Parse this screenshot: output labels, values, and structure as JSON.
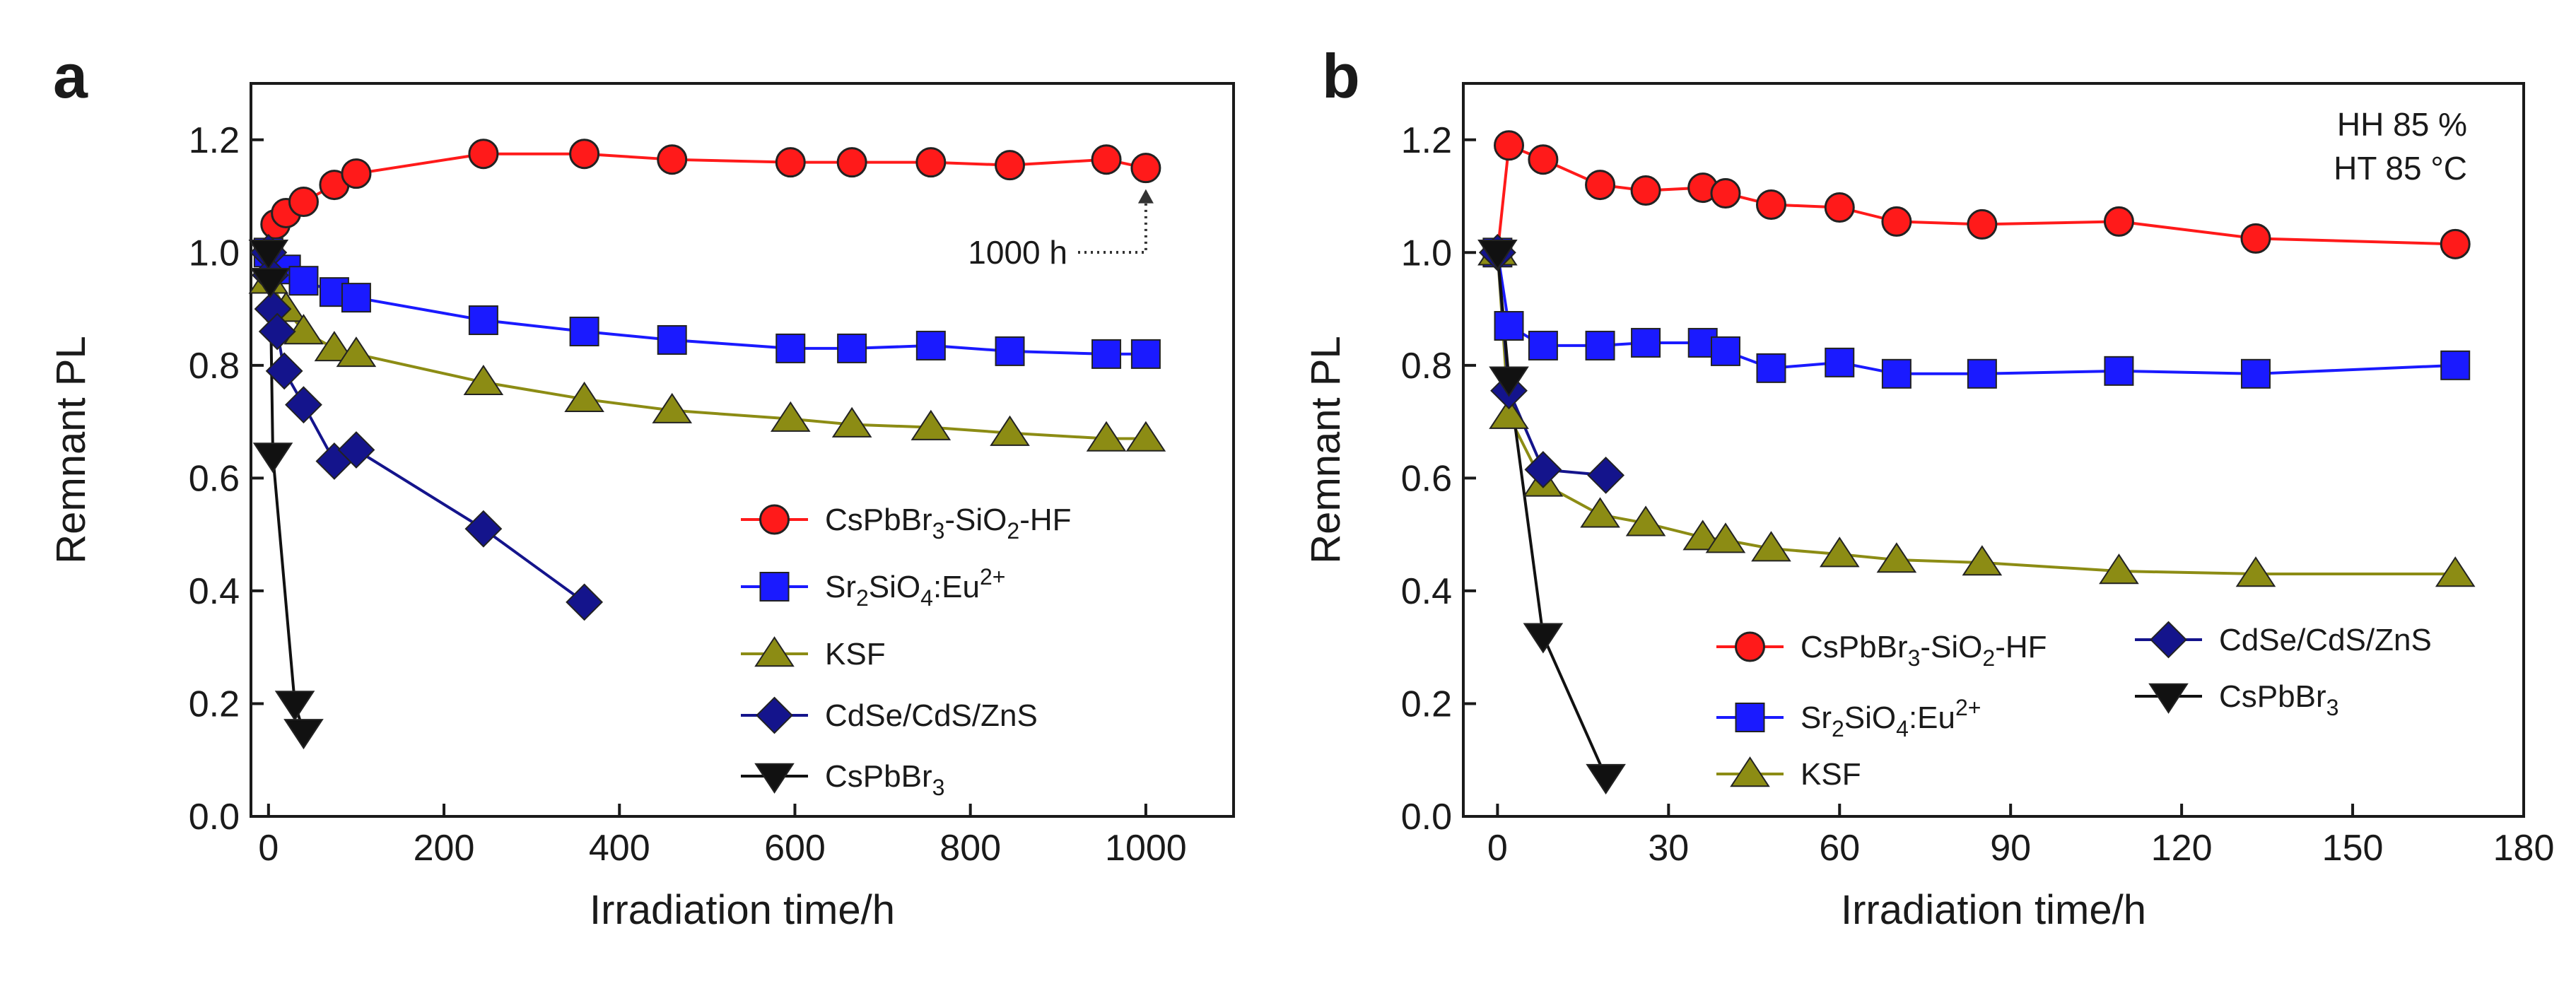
{
  "chart_data": [
    {
      "panel": "a",
      "type": "line",
      "xlabel": "Irradiation time/h",
      "ylabel": "Remnant PL",
      "xlim": [
        -20,
        1100
      ],
      "ylim": [
        0.0,
        1.3
      ],
      "xticks": [
        0,
        200,
        400,
        600,
        800,
        1000
      ],
      "yticks": [
        0.0,
        0.2,
        0.4,
        0.6,
        0.8,
        1.0,
        1.2
      ],
      "xtick_labels": [
        "0",
        "200",
        "400",
        "600",
        "800",
        "1000"
      ],
      "ytick_labels": [
        "0.0",
        "0.2",
        "0.4",
        "0.6",
        "0.8",
        "1.0",
        "1.2"
      ],
      "legend_position": "bottom-right",
      "annotations": [
        {
          "text": "1000 h",
          "points_to": [
            1000,
            1.15
          ]
        }
      ],
      "series": [
        {
          "name": "CsPbBr3-SiO2-HF",
          "legend_parts": [
            [
              "CsPbBr",
              ""
            ],
            [
              "3",
              "sub"
            ],
            [
              "-SiO",
              ""
            ],
            [
              "2",
              "sub"
            ],
            [
              "-HF",
              ""
            ]
          ],
          "color": "#ff1a1a",
          "marker": "circle",
          "x": [
            0,
            8,
            20,
            40,
            75,
            100,
            245,
            360,
            460,
            595,
            665,
            755,
            845,
            955,
            1000
          ],
          "y": [
            1.0,
            1.05,
            1.07,
            1.09,
            1.12,
            1.14,
            1.175,
            1.175,
            1.165,
            1.16,
            1.16,
            1.16,
            1.155,
            1.165,
            1.15
          ]
        },
        {
          "name": "Sr2SiO4:Eu2+",
          "legend_parts": [
            [
              "Sr",
              ""
            ],
            [
              "2",
              "sub"
            ],
            [
              "SiO",
              ""
            ],
            [
              "4",
              "sub"
            ],
            [
              ":Eu",
              ""
            ],
            [
              "2+",
              "sup"
            ]
          ],
          "color": "#1a1aff",
          "marker": "square",
          "x": [
            0,
            20,
            40,
            75,
            100,
            245,
            360,
            460,
            595,
            665,
            755,
            845,
            955,
            1000
          ],
          "y": [
            1.0,
            0.97,
            0.95,
            0.93,
            0.92,
            0.88,
            0.86,
            0.845,
            0.83,
            0.83,
            0.835,
            0.825,
            0.82,
            0.82
          ]
        },
        {
          "name": "KSF",
          "legend_parts": [
            [
              "KSF",
              ""
            ]
          ],
          "color": "#8c8c14",
          "marker": "triangle-up",
          "x": [
            0,
            20,
            40,
            75,
            100,
            245,
            360,
            460,
            595,
            665,
            755,
            845,
            955,
            1000
          ],
          "y": [
            0.95,
            0.9,
            0.86,
            0.83,
            0.82,
            0.77,
            0.74,
            0.72,
            0.705,
            0.695,
            0.69,
            0.68,
            0.67,
            0.67
          ]
        },
        {
          "name": "CdSe/CdS/ZnS",
          "legend_parts": [
            [
              "CdSe/CdS/ZnS",
              ""
            ]
          ],
          "color": "#14148c",
          "marker": "diamond",
          "x": [
            0,
            2,
            5,
            10,
            18,
            40,
            75,
            100,
            245,
            360
          ],
          "y": [
            1.0,
            0.96,
            0.9,
            0.86,
            0.79,
            0.73,
            0.63,
            0.65,
            0.51,
            0.38
          ]
        },
        {
          "name": "CsPbBr3",
          "legend_parts": [
            [
              "CsPbBr",
              ""
            ],
            [
              "3",
              "sub"
            ]
          ],
          "color": "#111111",
          "marker": "triangle-down",
          "x": [
            0,
            2,
            5,
            30,
            40
          ],
          "y": [
            1.0,
            0.95,
            0.64,
            0.2,
            0.15
          ]
        }
      ]
    },
    {
      "panel": "b",
      "type": "line",
      "xlabel": "Irradiation time/h",
      "ylabel": "Remnant PL",
      "xlim": [
        -6,
        180
      ],
      "ylim": [
        0.0,
        1.3
      ],
      "xticks": [
        0,
        30,
        60,
        90,
        120,
        150,
        180
      ],
      "yticks": [
        0.0,
        0.2,
        0.4,
        0.6,
        0.8,
        1.0,
        1.2
      ],
      "xtick_labels": [
        "0",
        "30",
        "60",
        "90",
        "120",
        "150",
        "180"
      ],
      "ytick_labels": [
        "0.0",
        "0.2",
        "0.4",
        "0.6",
        "0.8",
        "1.0",
        "1.2"
      ],
      "legend_position": "bottom-right",
      "conditions": [
        "HH 85 %",
        "HT 85 °C"
      ],
      "series": [
        {
          "name": "CsPbBr3-SiO2-HF",
          "legend_parts": [
            [
              "CsPbBr",
              ""
            ],
            [
              "3",
              "sub"
            ],
            [
              "-SiO",
              ""
            ],
            [
              "2",
              "sub"
            ],
            [
              "-HF",
              ""
            ]
          ],
          "color": "#ff1a1a",
          "marker": "circle",
          "x": [
            0,
            2,
            8,
            18,
            26,
            36,
            40,
            48,
            60,
            70,
            85,
            109,
            133,
            168
          ],
          "y": [
            1.0,
            1.19,
            1.165,
            1.12,
            1.11,
            1.115,
            1.105,
            1.085,
            1.08,
            1.055,
            1.05,
            1.055,
            1.025,
            1.015
          ]
        },
        {
          "name": "Sr2SiO4:Eu2+",
          "legend_parts": [
            [
              "Sr",
              ""
            ],
            [
              "2",
              "sub"
            ],
            [
              "SiO",
              ""
            ],
            [
              "4",
              "sub"
            ],
            [
              ":Eu",
              ""
            ],
            [
              "2+",
              "sup"
            ]
          ],
          "color": "#1a1aff",
          "marker": "square",
          "x": [
            0,
            2,
            8,
            18,
            26,
            36,
            40,
            48,
            60,
            70,
            85,
            109,
            133,
            168
          ],
          "y": [
            1.0,
            0.87,
            0.835,
            0.835,
            0.84,
            0.84,
            0.825,
            0.795,
            0.805,
            0.785,
            0.785,
            0.79,
            0.785,
            0.8
          ]
        },
        {
          "name": "KSF",
          "legend_parts": [
            [
              "KSF",
              ""
            ]
          ],
          "color": "#8c8c14",
          "marker": "triangle-up",
          "x": [
            0,
            2,
            8,
            18,
            26,
            36,
            40,
            48,
            60,
            70,
            85,
            109,
            133,
            168
          ],
          "y": [
            1.0,
            0.71,
            0.59,
            0.535,
            0.52,
            0.495,
            0.49,
            0.475,
            0.465,
            0.455,
            0.45,
            0.435,
            0.43,
            0.43
          ]
        },
        {
          "name": "CdSe/CdS/ZnS",
          "legend_parts": [
            [
              "CdSe/CdS/ZnS",
              ""
            ]
          ],
          "color": "#14148c",
          "marker": "diamond",
          "x": [
            0,
            2,
            8,
            19
          ],
          "y": [
            1.0,
            0.755,
            0.615,
            0.605
          ]
        },
        {
          "name": "CsPbBr3",
          "legend_parts": [
            [
              "CsPbBr",
              ""
            ],
            [
              "3",
              "sub"
            ]
          ],
          "color": "#111111",
          "marker": "triangle-down",
          "x": [
            0,
            2,
            8,
            19
          ],
          "y": [
            1.0,
            0.775,
            0.32,
            0.07
          ]
        }
      ]
    }
  ]
}
